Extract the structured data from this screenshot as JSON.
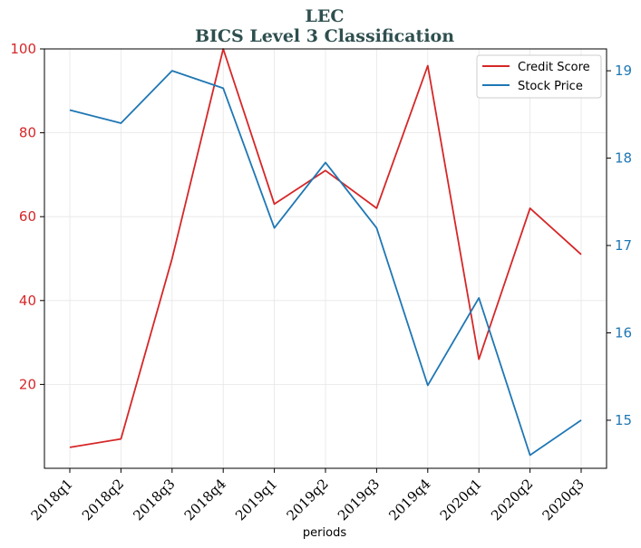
{
  "chart_data": {
    "type": "line",
    "title": "LEC",
    "subtitle": "BICS Level 3 Classification",
    "xlabel": "periods",
    "categories": [
      "2018q1",
      "2018q2",
      "2018q3",
      "2018q4",
      "2019q1",
      "2019q2",
      "2019q3",
      "2019q4",
      "2020q1",
      "2020q2",
      "2020q3"
    ],
    "series": [
      {
        "name": "Credit Score",
        "axis": "left",
        "color": "#d62728",
        "values": [
          5,
          7,
          50,
          100,
          63,
          71,
          62,
          96,
          26,
          62,
          51
        ]
      },
      {
        "name": "Stock Price",
        "axis": "right",
        "color": "#1f77b4",
        "values": [
          18.55,
          18.4,
          19.0,
          18.8,
          17.2,
          17.95,
          17.2,
          15.4,
          16.4,
          14.6,
          15.0
        ]
      }
    ],
    "left_axis": {
      "ylim": [
        0,
        100
      ],
      "ticks": [
        20,
        40,
        60,
        80,
        100
      ],
      "color": "#d62728"
    },
    "right_axis": {
      "ylim": [
        14.45,
        19.25
      ],
      "ticks": [
        15,
        16,
        17,
        18,
        19
      ],
      "color": "#1f77b4"
    },
    "grid": true,
    "legend_position": "top-right"
  }
}
